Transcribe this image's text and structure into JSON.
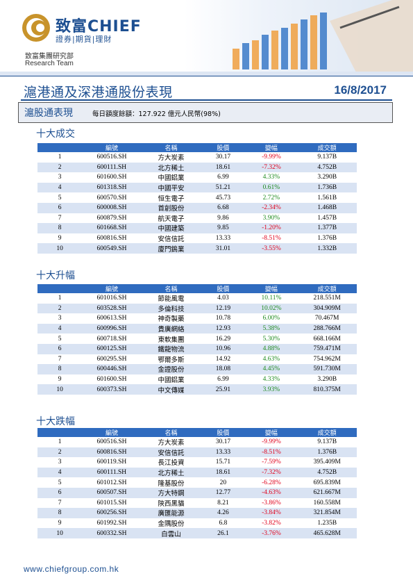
{
  "brand": {
    "logo_cn": "致富CHIEF",
    "logo_sub": "證券|期貨|理財",
    "dept_cn": "致富集團研究部",
    "dept_en": "Research Team",
    "color": "#1d4f91"
  },
  "report": {
    "title": "滬港通及深港通股份表現",
    "date": "16/8/2017",
    "section_label": "滬股通表現",
    "quota_note": "每日額度餘額：127.922 億元人民幣(98%)"
  },
  "columns": [
    "",
    "編號",
    "名稱",
    "股價",
    "變幅",
    "成交額"
  ],
  "tables": [
    {
      "title": "十大成交",
      "rows": [
        [
          "1",
          "600516.SH",
          "方大炭素",
          "30.17",
          "-9.99%",
          "9.137B"
        ],
        [
          "2",
          "600111.SH",
          "北方稀土",
          "18.61",
          "-7.32%",
          "4.752B"
        ],
        [
          "3",
          "601600.SH",
          "中國鋁業",
          "6.99",
          "4.33%",
          "3.290B"
        ],
        [
          "4",
          "601318.SH",
          "中國平安",
          "51.21",
          "0.61%",
          "1.736B"
        ],
        [
          "5",
          "600570.SH",
          "恒生電子",
          "45.73",
          "2.72%",
          "1.561B"
        ],
        [
          "6",
          "600008.SH",
          "首創股份",
          "6.68",
          "-2.34%",
          "1.468B"
        ],
        [
          "7",
          "600879.SH",
          "航天電子",
          "9.86",
          "3.90%",
          "1.457B"
        ],
        [
          "8",
          "601668.SH",
          "中國建築",
          "9.85",
          "-1.20%",
          "1.377B"
        ],
        [
          "9",
          "600816.SH",
          "安信信託",
          "13.33",
          "-8.51%",
          "1.376B"
        ],
        [
          "10",
          "600549.SH",
          "廈門鎢業",
          "31.01",
          "-3.55%",
          "1.332B"
        ]
      ]
    },
    {
      "title": "十大升幅",
      "rows": [
        [
          "1",
          "601016.SH",
          "節能風電",
          "4.03",
          "10.11%",
          "218.551M"
        ],
        [
          "2",
          "603528.SH",
          "多倫科技",
          "12.19",
          "10.02%",
          "304.909M"
        ],
        [
          "3",
          "600613.SH",
          "神奇製藥",
          "10.78",
          "6.00%",
          "70.467M"
        ],
        [
          "4",
          "600996.SH",
          "貴廣網絡",
          "12.93",
          "5.38%",
          "288.766M"
        ],
        [
          "5",
          "600718.SH",
          "東軟集團",
          "16.29",
          "5.30%",
          "668.166M"
        ],
        [
          "6",
          "600125.SH",
          "鐵龍物流",
          "10.96",
          "4.88%",
          "759.471M"
        ],
        [
          "7",
          "600295.SH",
          "鄂爾多斯",
          "14.92",
          "4.63%",
          "754.962M"
        ],
        [
          "8",
          "600446.SH",
          "金證股份",
          "18.08",
          "4.45%",
          "591.730M"
        ],
        [
          "9",
          "601600.SH",
          "中國鋁業",
          "6.99",
          "4.33%",
          "3.290B"
        ],
        [
          "10",
          "600373.SH",
          "中文傳媒",
          "25.91",
          "3.93%",
          "810.375M"
        ]
      ]
    },
    {
      "title": "十大跌幅",
      "rows": [
        [
          "1",
          "600516.SH",
          "方大炭素",
          "30.17",
          "-9.99%",
          "9.137B"
        ],
        [
          "2",
          "600816.SH",
          "安信信託",
          "13.33",
          "-8.51%",
          "1.376B"
        ],
        [
          "3",
          "600119.SH",
          "長江投資",
          "15.71",
          "-7.59%",
          "395.409M"
        ],
        [
          "4",
          "600111.SH",
          "北方稀土",
          "18.61",
          "-7.32%",
          "4.752B"
        ],
        [
          "5",
          "601012.SH",
          "隆基股份",
          "20",
          "-6.28%",
          "695.839M"
        ],
        [
          "6",
          "600507.SH",
          "方大特鋼",
          "12.77",
          "-4.63%",
          "621.667M"
        ],
        [
          "7",
          "601015.SH",
          "陝西黑貓",
          "8.21",
          "-3.86%",
          "160.558M"
        ],
        [
          "8",
          "600256.SH",
          "廣匯能源",
          "4.26",
          "-3.84%",
          "321.854M"
        ],
        [
          "9",
          "601992.SH",
          "金隅股份",
          "6.8",
          "-3.82%",
          "1.235B"
        ],
        [
          "10",
          "600332.SH",
          "白雲山",
          "26.1",
          "-3.76%",
          "465.628M"
        ]
      ]
    }
  ],
  "colors": {
    "up": "#1d8a1d",
    "down": "#e0001b",
    "header": "#2f6bbf",
    "stripe": "#d9e3f3"
  },
  "footer": {
    "url": "www.chiefgroup.com.hk"
  }
}
